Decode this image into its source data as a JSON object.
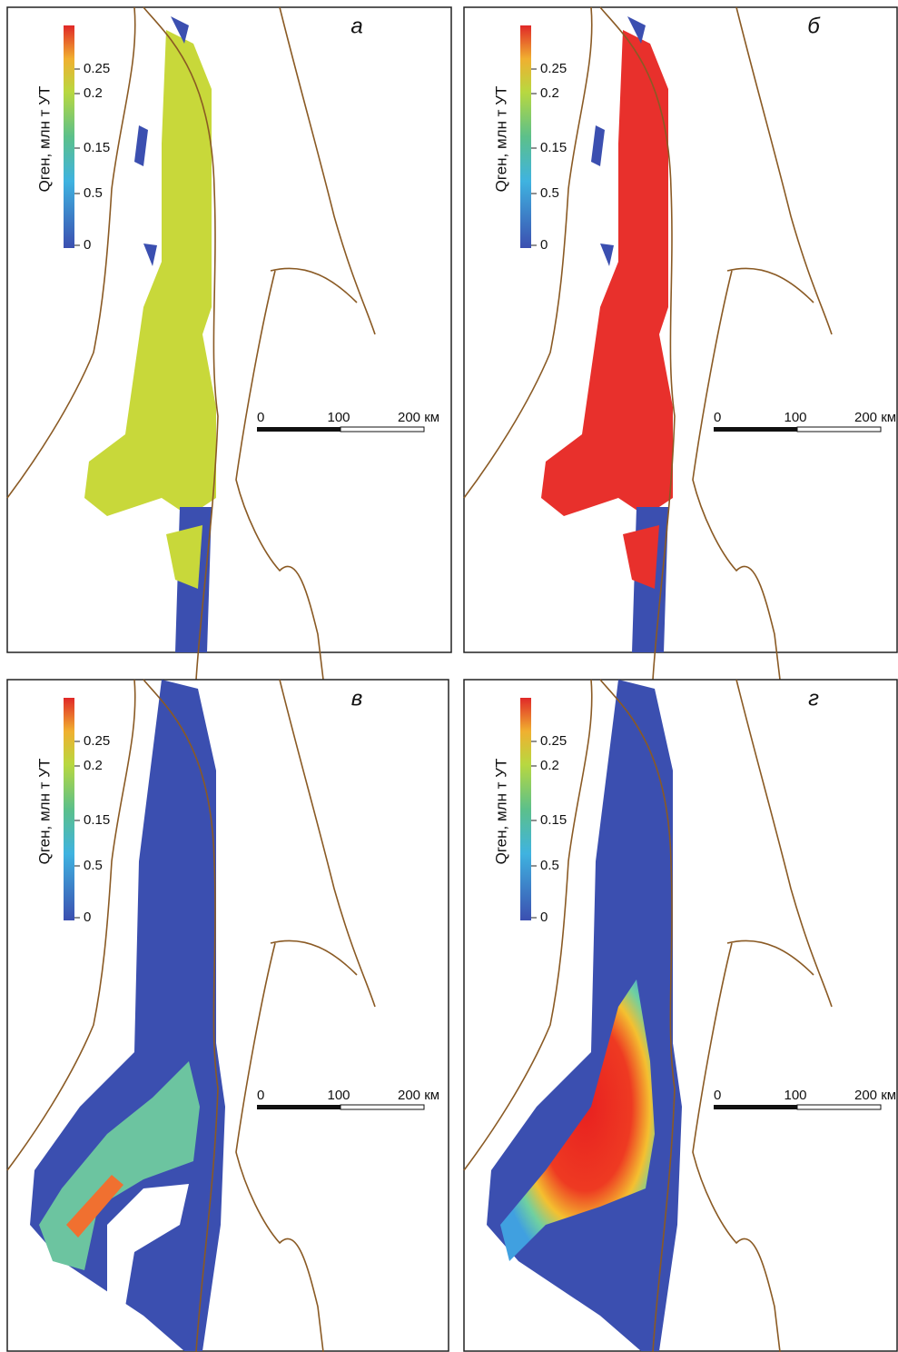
{
  "panels": [
    {
      "label": "а",
      "legend_title": "Qген, млн т УТ",
      "legend_ticks": [
        "0.25",
        "0.2",
        "0.15",
        "0.5",
        "0"
      ],
      "scale_labels": [
        "0",
        "100",
        "200 км"
      ]
    },
    {
      "label": "б",
      "legend_title": "Qген, млн т УТ",
      "legend_ticks": [
        "0.25",
        "0.2",
        "0.15",
        "0.5",
        "0"
      ],
      "scale_labels": [
        "0",
        "100",
        "200 км"
      ]
    },
    {
      "label": "в",
      "legend_title": "Qген, млн т УТ",
      "legend_ticks": [
        "0.25",
        "0.2",
        "0.15",
        "0.5",
        "0"
      ],
      "scale_labels": [
        "0",
        "100",
        "200 км"
      ]
    },
    {
      "label": "г",
      "legend_title": "Qген, млн т УТ",
      "legend_ticks": [
        "0.25",
        "0.2",
        "0.15",
        "0.5",
        "0"
      ],
      "scale_labels": [
        "0",
        "100",
        "200 км"
      ]
    }
  ]
}
